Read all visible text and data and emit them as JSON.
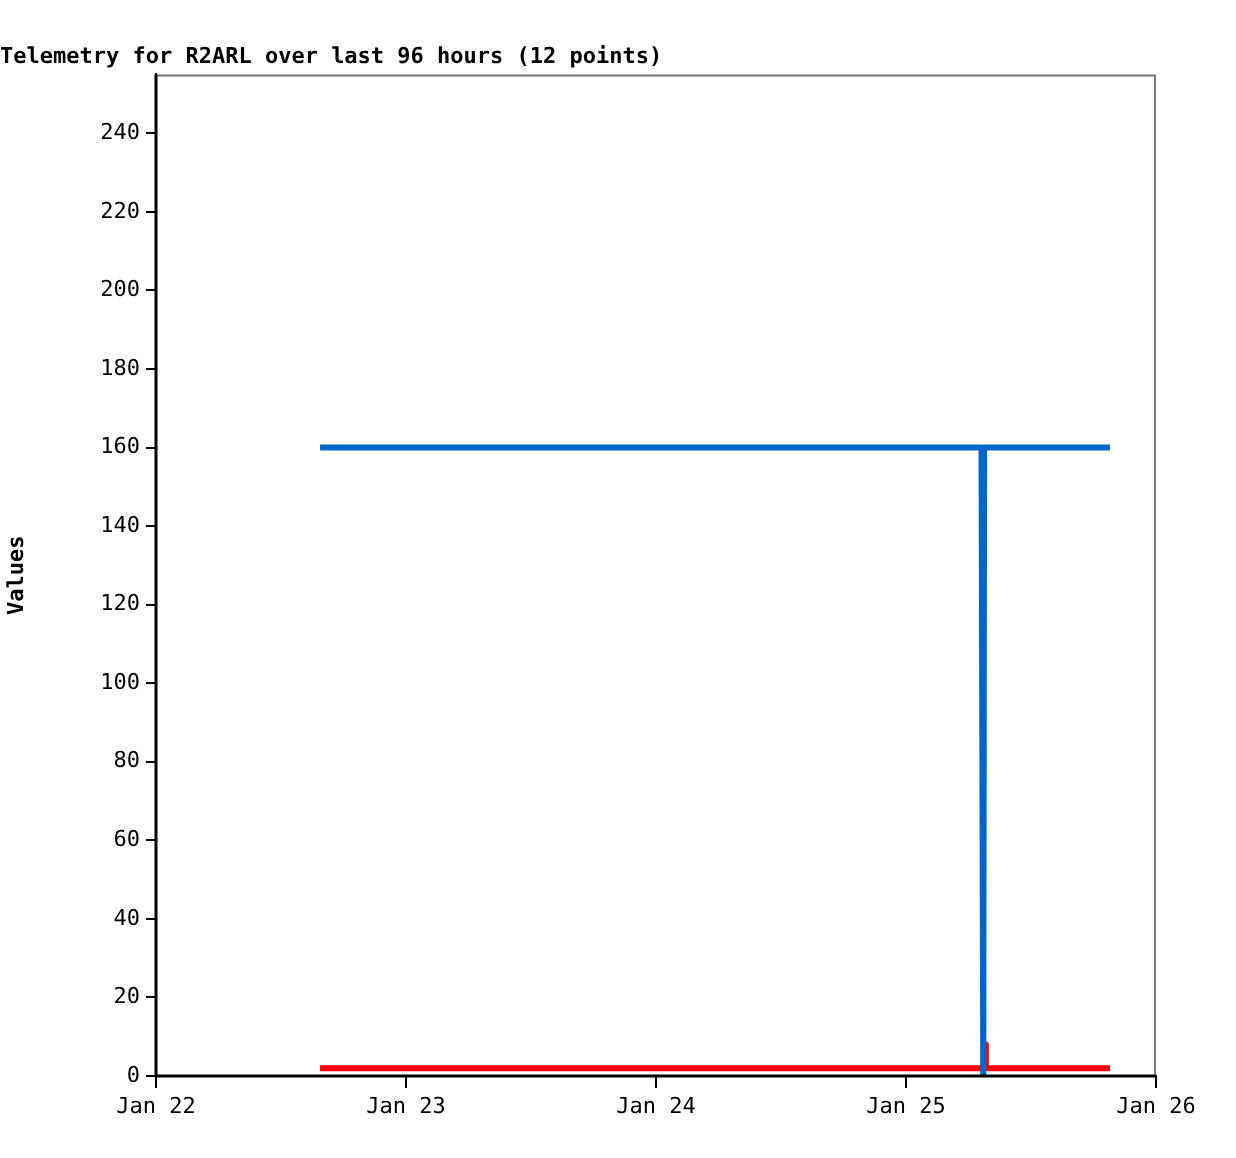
{
  "chart_data": {
    "type": "line",
    "title": "Telemetry for R2ARL over last 96 hours (12 points)",
    "ylabel": "Values",
    "xlim": [
      "--01-22",
      "--01-26"
    ],
    "xticks": [
      {
        "value": "--01-22",
        "label": "Jan 22"
      },
      {
        "value": "--01-23",
        "label": "Jan 23"
      },
      {
        "value": "--01-24",
        "label": "Jan 24"
      },
      {
        "value": "--01-25",
        "label": "Jan 25"
      },
      {
        "value": "--01-26",
        "label": "Jan 26"
      }
    ],
    "ylim": [
      0,
      255
    ],
    "yticks": [
      0,
      20,
      40,
      60,
      80,
      100,
      120,
      140,
      160,
      180,
      200,
      220,
      240
    ],
    "grid": false,
    "series": [
      {
        "color": "#0066cc",
        "x": [
          "--01-22T15:45",
          "--01-25T07:15",
          "--01-25T07:20",
          "--01-25T07:25",
          "--01-25T07:30",
          "--01-25T19:35"
        ],
        "values": [
          160,
          160,
          80,
          0,
          160,
          160
        ]
      },
      {
        "color": "#ff0000",
        "x": [
          "--01-22T15:45",
          "--01-25T07:25",
          "--01-25T07:35",
          "--01-25T07:40",
          "--01-25T19:35"
        ],
        "values": [
          2,
          2,
          8,
          2,
          2
        ]
      }
    ]
  }
}
